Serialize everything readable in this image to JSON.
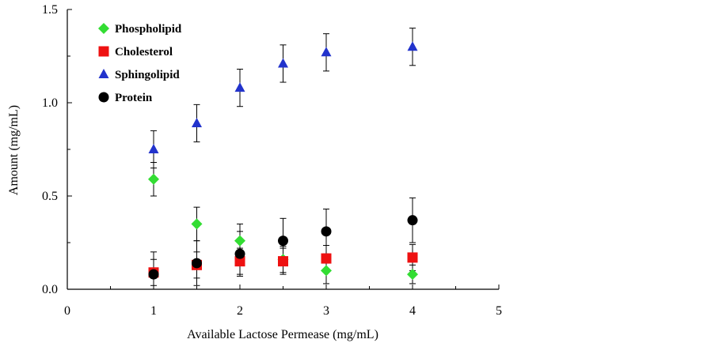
{
  "chart_data": {
    "type": "scatter",
    "title": "",
    "xlabel": "Available Lactose Permease (mg/mL)",
    "ylabel": "Amount (mg/mL)",
    "xlim": [
      0,
      5
    ],
    "ylim": [
      0,
      1.5
    ],
    "x_ticks": [
      "0",
      "1",
      "2",
      "3",
      "4",
      "5"
    ],
    "y_ticks": [
      "0.0",
      "0.5",
      "1.0",
      "1.5"
    ],
    "grid": false,
    "legend_position": "top-left",
    "series": [
      {
        "name": "Phospholipid",
        "marker": "diamond",
        "color": "#33dd33",
        "points": [
          {
            "x": 1,
            "y": 0.59,
            "err": 0.09
          },
          {
            "x": 1.5,
            "y": 0.35,
            "err": 0.09
          },
          {
            "x": 2,
            "y": 0.26,
            "err": 0.09
          },
          {
            "x": 2.5,
            "y": 0.16,
            "err": 0.07
          },
          {
            "x": 3,
            "y": 0.1,
            "err": 0.07
          },
          {
            "x": 4,
            "y": 0.08,
            "err": 0.05
          }
        ]
      },
      {
        "name": "Cholesterol",
        "marker": "square",
        "color": "#ee1111",
        "points": [
          {
            "x": 1,
            "y": 0.09,
            "err": 0.07
          },
          {
            "x": 1.5,
            "y": 0.13,
            "err": 0.07
          },
          {
            "x": 2,
            "y": 0.15,
            "err": 0.07
          },
          {
            "x": 2.5,
            "y": 0.15,
            "err": 0.07
          },
          {
            "x": 3,
            "y": 0.165,
            "err": 0.07
          },
          {
            "x": 4,
            "y": 0.17,
            "err": 0.07
          }
        ]
      },
      {
        "name": "Sphingolipid",
        "marker": "triangle",
        "color": "#2233cc",
        "points": [
          {
            "x": 1,
            "y": 0.75,
            "err": 0.1
          },
          {
            "x": 1.5,
            "y": 0.89,
            "err": 0.1
          },
          {
            "x": 2,
            "y": 1.08,
            "err": 0.1
          },
          {
            "x": 2.5,
            "y": 1.21,
            "err": 0.1
          },
          {
            "x": 3,
            "y": 1.27,
            "err": 0.1
          },
          {
            "x": 4,
            "y": 1.3,
            "err": 0.1
          }
        ]
      },
      {
        "name": "Protein",
        "marker": "circle",
        "color": "#000000",
        "points": [
          {
            "x": 1,
            "y": 0.08,
            "err": 0.12
          },
          {
            "x": 1.5,
            "y": 0.14,
            "err": 0.12
          },
          {
            "x": 2,
            "y": 0.19,
            "err": 0.12
          },
          {
            "x": 2.5,
            "y": 0.26,
            "err": 0.12
          },
          {
            "x": 3,
            "y": 0.31,
            "err": 0.12
          },
          {
            "x": 4,
            "y": 0.37,
            "err": 0.12
          }
        ]
      }
    ]
  }
}
